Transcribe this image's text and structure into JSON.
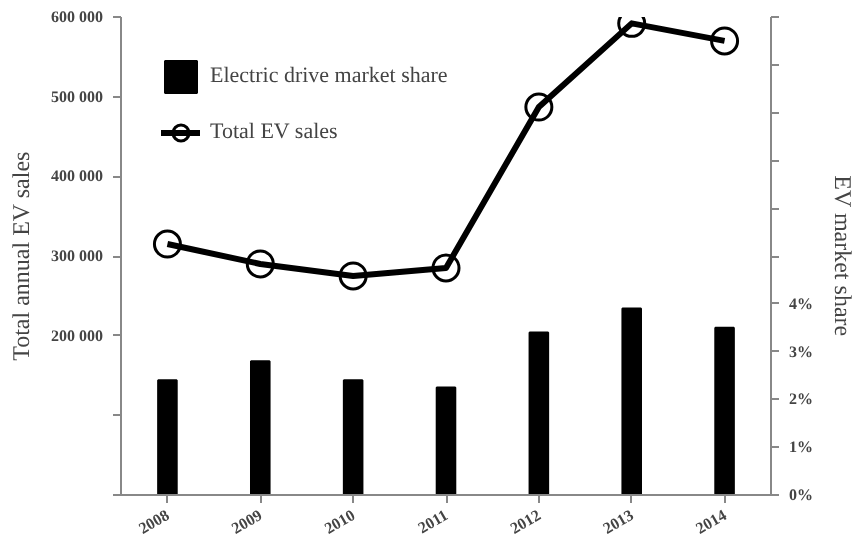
{
  "chart_data": {
    "type": "bar",
    "categories": [
      "2008",
      "2009",
      "2010",
      "2011",
      "2012",
      "2013",
      "2014"
    ],
    "series": [
      {
        "name": "Electric drive market share",
        "axis": "y2",
        "color": "#000000",
        "values": [
          2.4,
          2.8,
          2.4,
          2.25,
          3.4,
          3.9,
          3.5
        ]
      },
      {
        "name": "Total EV sales",
        "type": "line",
        "color": "#000000",
        "marker": "circle",
        "values": [
          315000,
          290000,
          275000,
          285000,
          487000,
          592000,
          570000
        ]
      }
    ],
    "ylabel": "Total annual EV sales",
    "y2label": "EV market share",
    "ylim": [
      0,
      600000
    ],
    "yticks": [
      {
        "value": 0,
        "label": null
      },
      {
        "value": 100000,
        "label": null
      },
      {
        "value": 200000,
        "label": "200 000"
      },
      {
        "value": 300000,
        "label": "300 000"
      },
      {
        "value": 400000,
        "label": "400 000"
      },
      {
        "value": 500000,
        "label": "500 000"
      },
      {
        "value": 600000,
        "label": "600 000"
      }
    ],
    "y2lim": [
      0,
      10
    ],
    "y2ticks": [
      {
        "value": 0,
        "label": "0%"
      },
      {
        "value": 1,
        "label": "1%"
      },
      {
        "value": 2,
        "label": "2%"
      },
      {
        "value": 3,
        "label": "3%"
      },
      {
        "value": 4,
        "label": "4%"
      },
      {
        "value": 5,
        "label": null
      },
      {
        "value": 6,
        "label": null
      },
      {
        "value": 7,
        "label": null
      },
      {
        "value": 8,
        "label": null
      },
      {
        "value": 9,
        "label": null
      },
      {
        "value": 10,
        "label": null
      }
    ],
    "grid": false,
    "legend": "top left"
  }
}
